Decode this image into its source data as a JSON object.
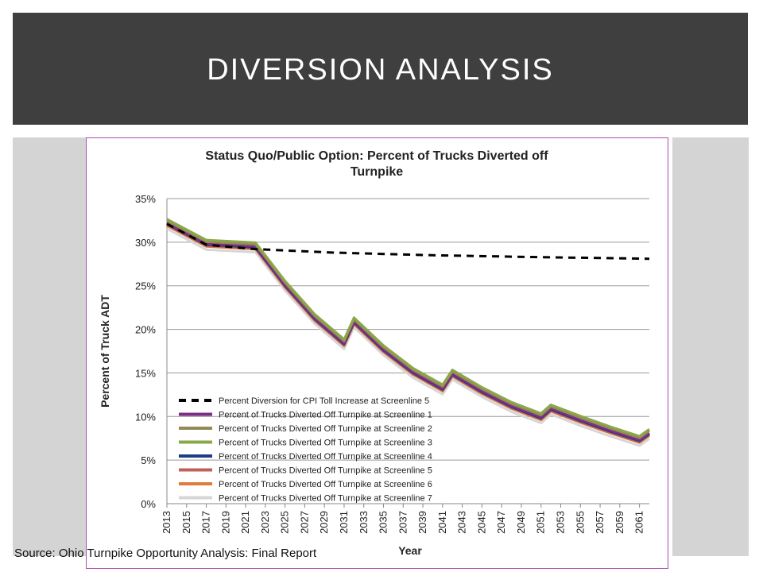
{
  "slide": {
    "title": "DIVERSION ANALYSIS",
    "source": "Source: Ohio Turnpike Opportunity Analysis: Final Report"
  },
  "colors": {
    "title_bar": "#3f3f3f",
    "side_panels": "#d4d4d4",
    "frame_border": "#b04bb0"
  },
  "chart_data": {
    "type": "line",
    "title": "Status Quo/Public Option: Percent of Trucks Diverted off Turnpike",
    "xlabel": "Year",
    "ylabel": "Percent of Truck ADT",
    "xlim": [
      2013,
      2062
    ],
    "ylim": [
      0,
      35
    ],
    "y_ticks": [
      "0%",
      "5%",
      "10%",
      "15%",
      "20%",
      "25%",
      "30%",
      "35%"
    ],
    "x_ticks": [
      "2013",
      "2015",
      "2017",
      "2019",
      "2021",
      "2023",
      "2025",
      "2027",
      "2029",
      "2031",
      "2033",
      "2035",
      "2037",
      "2039",
      "2041",
      "2043",
      "2045",
      "2047",
      "2049",
      "2051",
      "2053",
      "2055",
      "2057",
      "2059",
      "2061"
    ],
    "grid": "horizontal",
    "legend_position": "lower-left",
    "base_curve": {
      "x": [
        2013,
        2017,
        2022,
        2025,
        2028,
        2031,
        2032,
        2035,
        2038,
        2041,
        2042,
        2045,
        2048,
        2051,
        2052,
        2055,
        2058,
        2061,
        2062
      ],
      "y": [
        32.1,
        29.7,
        29.4,
        25.0,
        21.2,
        18.3,
        20.8,
        17.6,
        15.0,
        13.1,
        14.8,
        12.8,
        11.1,
        9.8,
        10.8,
        9.5,
        8.3,
        7.2,
        8.0
      ]
    },
    "series": [
      {
        "name": "Percent Diversion for CPI Toll Increase at Screenline 5",
        "color": "#000000",
        "dashed": true,
        "x": [
          2013,
          2017,
          2022,
          2030,
          2040,
          2050,
          2062
        ],
        "y": [
          32.1,
          29.7,
          29.2,
          28.8,
          28.5,
          28.3,
          28.1
        ]
      },
      {
        "name": "Percent of Trucks Diverted Off Turnpike at Screenline 1",
        "color": "#7b2d86",
        "offset": 0.1
      },
      {
        "name": "Percent of Trucks Diverted Off Turnpike at Screenline 2",
        "color": "#948a54",
        "offset": 0.35
      },
      {
        "name": "Percent of Trucks Diverted Off Turnpike at Screenline 3",
        "color": "#8aa84a",
        "offset": 0.55
      },
      {
        "name": "Percent of Trucks Diverted Off Turnpike at Screenline 4",
        "color": "#1f3c88",
        "offset": 0.0
      },
      {
        "name": "Percent of Trucks Diverted Off Turnpike at Screenline 5",
        "color": "#c0605a",
        "offset": -0.1
      },
      {
        "name": "Percent of Trucks Diverted Off Turnpike at Screenline 6",
        "color": "#e07b39",
        "offset": -0.2
      },
      {
        "name": "Percent of Trucks Diverted Off Turnpike at Screenline 7",
        "color": "#d6d6d6",
        "offset": -0.55
      }
    ]
  }
}
